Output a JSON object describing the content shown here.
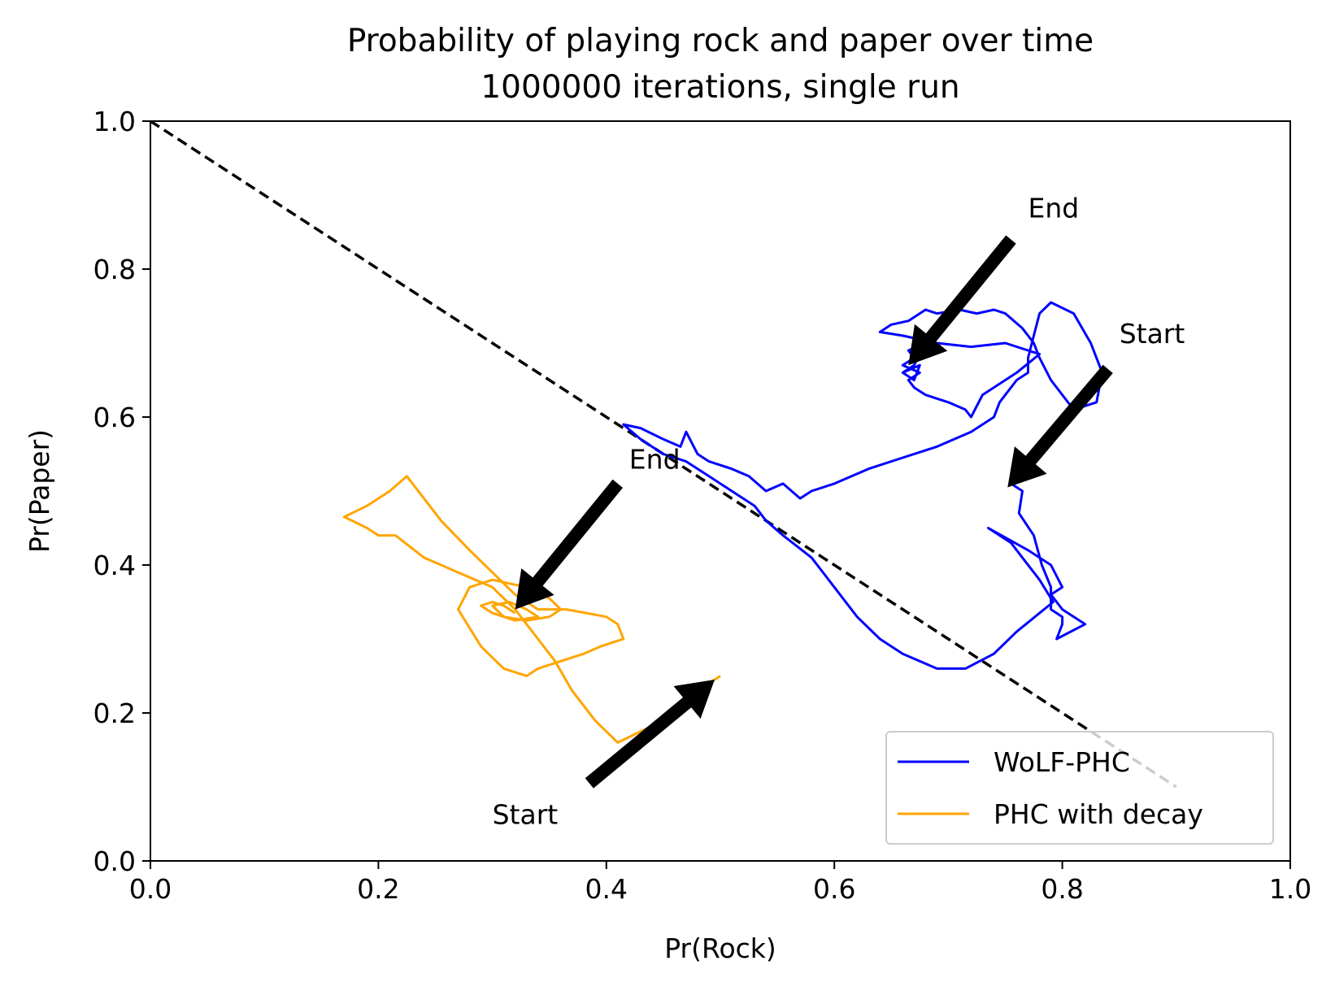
{
  "chart_data": {
    "type": "line",
    "title_line1": "Probability of playing rock and paper over time",
    "title_line2": "1000000 iterations, single run",
    "xlabel": "Pr(Rock)",
    "ylabel": "Pr(Paper)",
    "xlim": [
      0.0,
      1.0
    ],
    "ylim": [
      0.0,
      1.0
    ],
    "xticks": [
      0.0,
      0.2,
      0.4,
      0.6,
      0.8,
      1.0
    ],
    "yticks": [
      0.0,
      0.2,
      0.4,
      0.6,
      0.8,
      1.0
    ],
    "xtick_labels": [
      "0.0",
      "0.2",
      "0.4",
      "0.6",
      "0.8",
      "1.0"
    ],
    "ytick_labels": [
      "0.0",
      "0.2",
      "0.4",
      "0.6",
      "0.8",
      "1.0"
    ],
    "grid": false,
    "legend_position": "lower right",
    "reference_line": {
      "style": "dashed",
      "color": "#000000",
      "x": [
        0.0,
        0.9
      ],
      "y": [
        1.0,
        0.1
      ]
    },
    "series": [
      {
        "name": "WoLF-PHC",
        "color": "#0000ff",
        "x": [
          0.755,
          0.765,
          0.762,
          0.775,
          0.782,
          0.79,
          0.79,
          0.8,
          0.8,
          0.795,
          0.82,
          0.8,
          0.79,
          0.8,
          0.79,
          0.77,
          0.735,
          0.755,
          0.765,
          0.78,
          0.792,
          0.76,
          0.74,
          0.715,
          0.69,
          0.66,
          0.64,
          0.62,
          0.6,
          0.58,
          0.555,
          0.54,
          0.53,
          0.51,
          0.49,
          0.47,
          0.45,
          0.43,
          0.415,
          0.43,
          0.45,
          0.465,
          0.47,
          0.48,
          0.49,
          0.51,
          0.525,
          0.54,
          0.555,
          0.57,
          0.58,
          0.6,
          0.63,
          0.66,
          0.69,
          0.72,
          0.74,
          0.745,
          0.75,
          0.76,
          0.77,
          0.77,
          0.775,
          0.78,
          0.79,
          0.81,
          0.825,
          0.835,
          0.83,
          0.81,
          0.79,
          0.78,
          0.775,
          0.765,
          0.75,
          0.74,
          0.725,
          0.71,
          0.69,
          0.68,
          0.665,
          0.65,
          0.64,
          0.66,
          0.69,
          0.72,
          0.75,
          0.78,
          0.76,
          0.73,
          0.72,
          0.715,
          0.7,
          0.69,
          0.68,
          0.67,
          0.665,
          0.675,
          0.66,
          0.67,
          0.665,
          0.68,
          0.67,
          0.66,
          0.67,
          0.675,
          0.66
        ],
        "y": [
          0.51,
          0.5,
          0.47,
          0.44,
          0.4,
          0.37,
          0.34,
          0.33,
          0.32,
          0.3,
          0.32,
          0.34,
          0.36,
          0.37,
          0.4,
          0.42,
          0.45,
          0.43,
          0.41,
          0.38,
          0.35,
          0.31,
          0.28,
          0.26,
          0.26,
          0.28,
          0.3,
          0.33,
          0.37,
          0.41,
          0.44,
          0.46,
          0.48,
          0.5,
          0.52,
          0.54,
          0.55,
          0.57,
          0.59,
          0.585,
          0.57,
          0.56,
          0.58,
          0.55,
          0.54,
          0.53,
          0.52,
          0.5,
          0.51,
          0.49,
          0.5,
          0.51,
          0.53,
          0.545,
          0.56,
          0.58,
          0.6,
          0.62,
          0.63,
          0.65,
          0.66,
          0.68,
          0.71,
          0.74,
          0.755,
          0.74,
          0.7,
          0.66,
          0.62,
          0.61,
          0.65,
          0.68,
          0.7,
          0.72,
          0.74,
          0.745,
          0.74,
          0.745,
          0.74,
          0.745,
          0.73,
          0.725,
          0.715,
          0.71,
          0.7,
          0.695,
          0.7,
          0.685,
          0.66,
          0.63,
          0.6,
          0.61,
          0.62,
          0.625,
          0.63,
          0.64,
          0.65,
          0.66,
          0.67,
          0.68,
          0.69,
          0.7,
          0.67,
          0.66,
          0.65,
          0.67,
          0.66
        ]
      },
      {
        "name": "PHC with decay",
        "color": "#ffa500",
        "x": [
          0.5,
          0.47,
          0.45,
          0.41,
          0.39,
          0.37,
          0.355,
          0.34,
          0.32,
          0.3,
          0.27,
          0.24,
          0.215,
          0.2,
          0.19,
          0.17,
          0.19,
          0.21,
          0.225,
          0.25,
          0.255,
          0.28,
          0.3,
          0.32,
          0.34,
          0.365,
          0.4,
          0.41,
          0.415,
          0.395,
          0.38,
          0.36,
          0.34,
          0.33,
          0.31,
          0.29,
          0.27,
          0.28,
          0.3,
          0.33,
          0.35,
          0.36,
          0.35,
          0.33,
          0.31,
          0.3,
          0.315,
          0.33,
          0.34,
          0.32,
          0.3,
          0.29,
          0.3,
          0.31,
          0.32
        ],
        "y": [
          0.25,
          0.22,
          0.19,
          0.16,
          0.19,
          0.23,
          0.27,
          0.3,
          0.34,
          0.37,
          0.39,
          0.41,
          0.44,
          0.44,
          0.45,
          0.465,
          0.48,
          0.5,
          0.52,
          0.47,
          0.46,
          0.42,
          0.39,
          0.36,
          0.34,
          0.34,
          0.33,
          0.32,
          0.3,
          0.29,
          0.28,
          0.27,
          0.26,
          0.25,
          0.26,
          0.29,
          0.34,
          0.37,
          0.38,
          0.37,
          0.355,
          0.34,
          0.33,
          0.325,
          0.33,
          0.345,
          0.35,
          0.34,
          0.33,
          0.325,
          0.335,
          0.345,
          0.35,
          0.345,
          0.335
        ]
      }
    ],
    "annotations": [
      {
        "text": "End",
        "x": 0.77,
        "y": 0.87,
        "arrow_to": [
          0.665,
          0.67
        ],
        "arrow_from": [
          0.755,
          0.84
        ]
      },
      {
        "text": "Start",
        "x": 0.85,
        "y": 0.7,
        "arrow_to": [
          0.752,
          0.505
        ],
        "arrow_from": [
          0.84,
          0.665
        ]
      },
      {
        "text": "End",
        "x": 0.42,
        "y": 0.53,
        "arrow_to": [
          0.32,
          0.34
        ],
        "arrow_from": [
          0.41,
          0.51
        ]
      },
      {
        "text": "Start",
        "x": 0.3,
        "y": 0.05,
        "arrow_to": [
          0.495,
          0.245
        ],
        "arrow_from": [
          0.385,
          0.105
        ]
      }
    ]
  }
}
